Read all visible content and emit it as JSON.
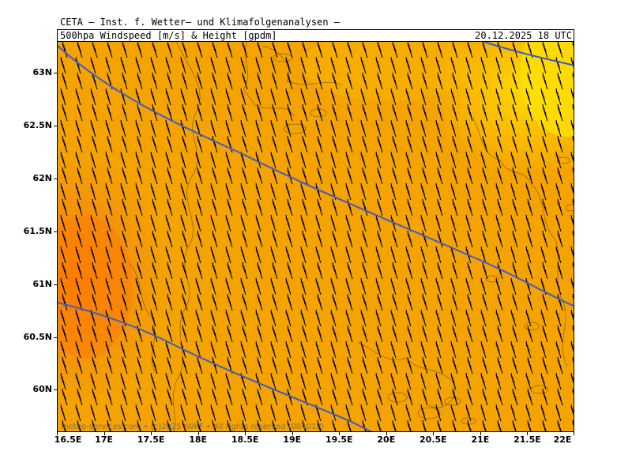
{
  "header": {
    "title": "CETA — Inst. f. Wetter— und Klimafolgenanalysen —",
    "subtitle": "500hpa Windspeed [m/s] & Height [gpdm]",
    "datetime": "20.12.2025 18 UTC"
  },
  "map": {
    "lat_labels": [
      "63N",
      "62.5N",
      "62N",
      "61.5N",
      "61N",
      "60.5N",
      "60N"
    ],
    "lon_labels": [
      "16.5E",
      "17E",
      "17.5E",
      "18E",
      "18.5E",
      "19E",
      "19.5E",
      "20E",
      "20.5E",
      "21E",
      "21.5E",
      "22E"
    ],
    "lat_values": [
      63,
      62.5,
      62,
      61.5,
      61,
      60.5,
      60
    ],
    "lon_values": [
      16.5,
      17,
      17.5,
      18,
      18.5,
      19,
      19.5,
      20,
      20.5,
      21,
      21.5,
      22
    ],
    "lat_range": [
      59.6,
      63.3
    ],
    "lon_range": [
      16.5,
      22.0
    ],
    "fill_colors": {
      "base": "#f5a300",
      "stronger": "#f28a12",
      "strongest": "#ff7b00",
      "weaker": "#fcc000",
      "weakest": "#ffe000"
    },
    "contour_color": "#3c5ad0",
    "coastline_color": "#2b2b2b",
    "wind_barb_color": "#000000"
  },
  "credit": "meteo-services.com • (c)2025 IWKF • All rights reserved (00401P)"
}
